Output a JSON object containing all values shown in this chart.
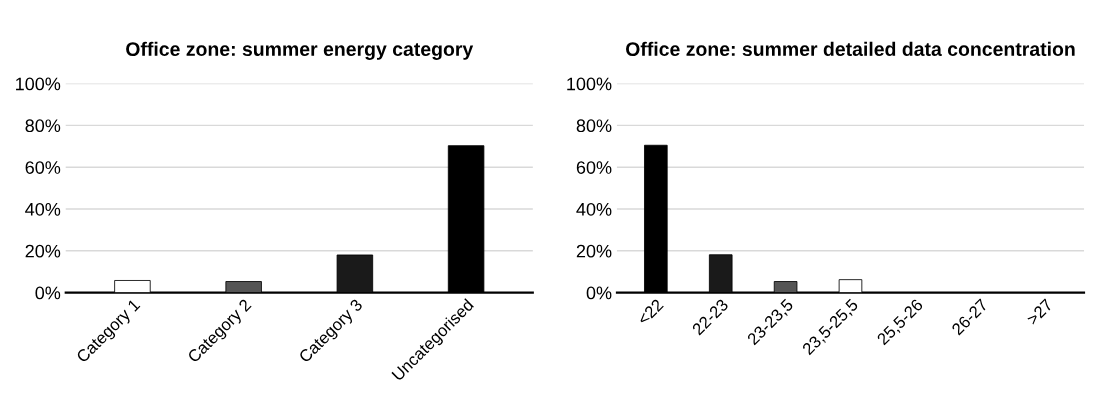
{
  "chart_data": [
    {
      "type": "bar",
      "title": "Office zone: summer energy category",
      "categories": [
        "Category 1",
        "Category 2",
        "Category 3",
        "Uncategorised"
      ],
      "values": [
        5.8,
        5.3,
        18.0,
        70.3
      ],
      "colors": [
        "#ffffff",
        "#555555",
        "#1a1a1a",
        "#000000"
      ],
      "ylim": [
        0,
        100
      ],
      "yticks": [
        {
          "value": 0,
          "label": "0%"
        },
        {
          "value": 20,
          "label": "20%"
        },
        {
          "value": 40,
          "label": "40%"
        },
        {
          "value": 60,
          "label": "60%"
        },
        {
          "value": 80,
          "label": "80%"
        },
        {
          "value": 100,
          "label": "100%"
        }
      ],
      "grid": "y",
      "legend": false
    },
    {
      "type": "bar",
      "title": "Office zone: summer detailed data concentration",
      "categories": [
        "<22",
        "22-23",
        "23-23,5",
        "23,5-25,5",
        "25,5-26",
        "26-27",
        ">27"
      ],
      "values": [
        70.5,
        18.1,
        5.3,
        6.2,
        0,
        0,
        0
      ],
      "colors": [
        "#000000",
        "#1a1a1a",
        "#555555",
        "#ffffff",
        "#000000",
        "#000000",
        "#000000"
      ],
      "ylim": [
        0,
        100
      ],
      "yticks": [
        {
          "value": 0,
          "label": "0%"
        },
        {
          "value": 20,
          "label": "20%"
        },
        {
          "value": 40,
          "label": "40%"
        },
        {
          "value": 60,
          "label": "60%"
        },
        {
          "value": 80,
          "label": "80%"
        },
        {
          "value": 100,
          "label": "100%"
        }
      ],
      "grid": "y",
      "legend": false
    }
  ]
}
